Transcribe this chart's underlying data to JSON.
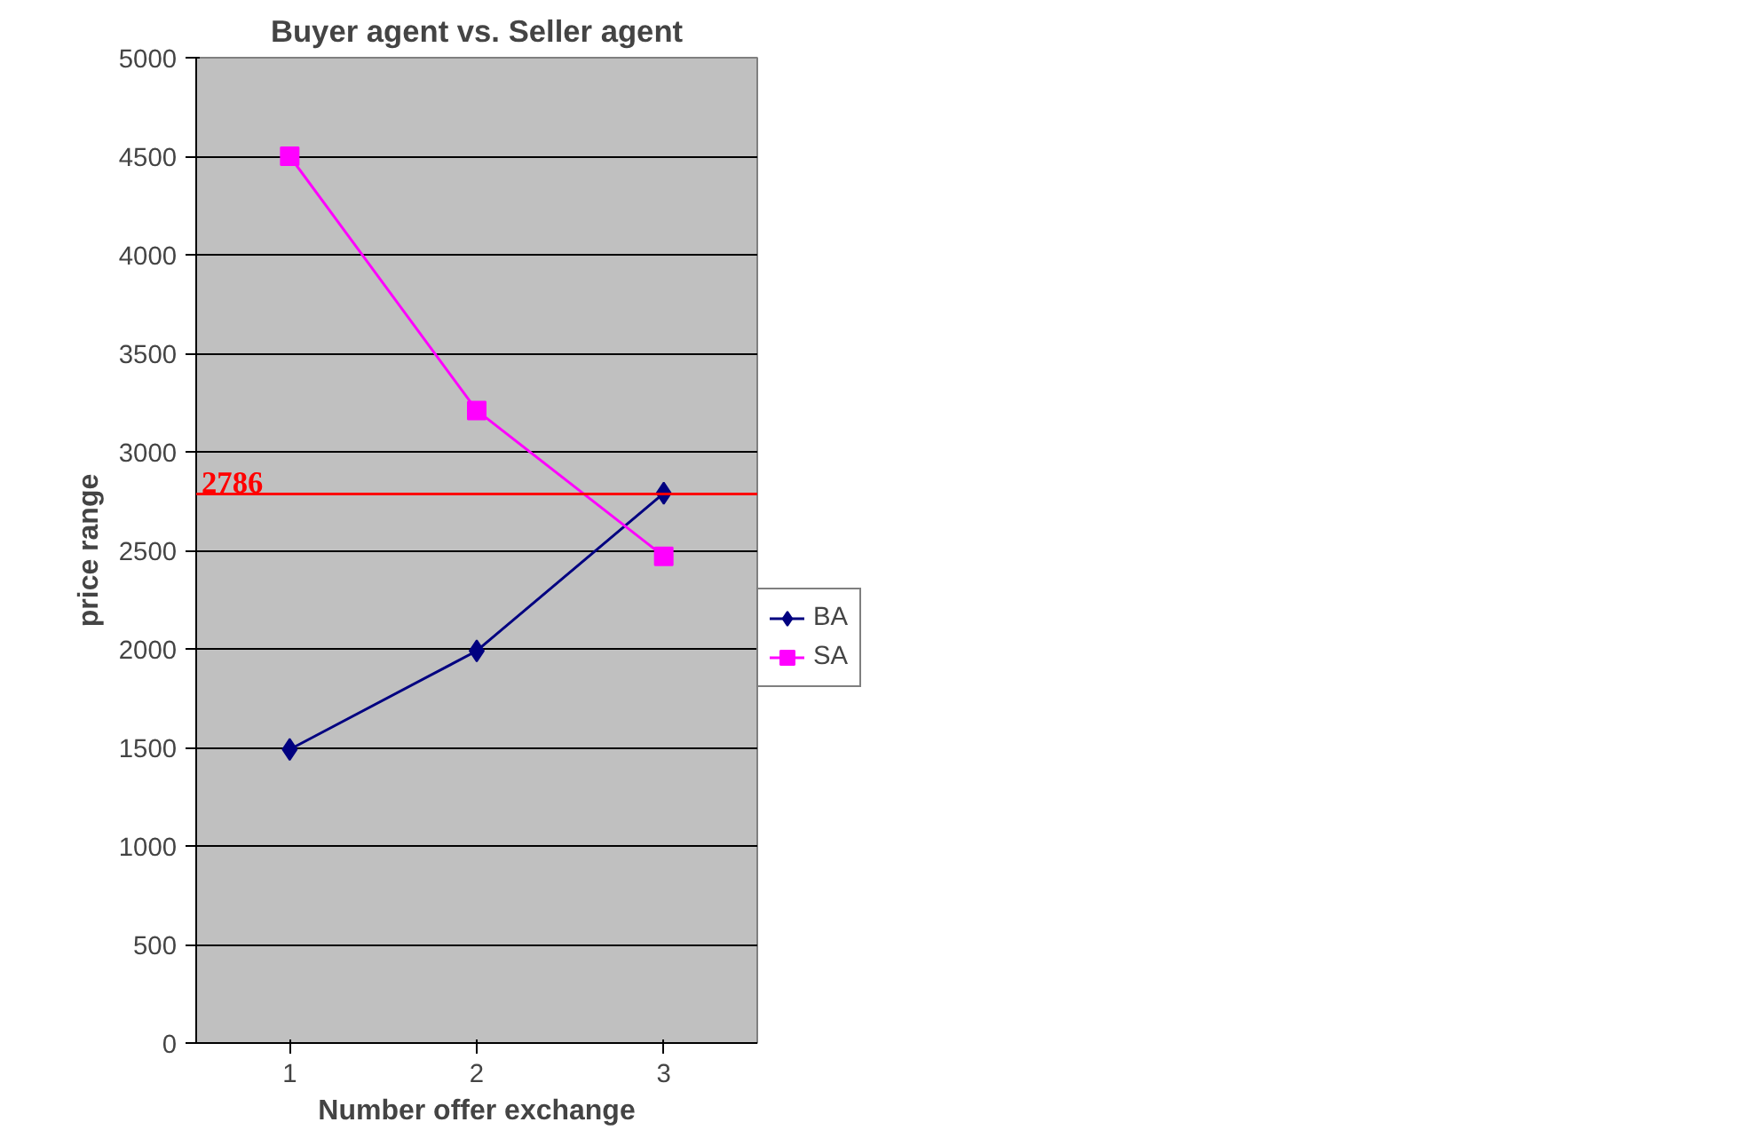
{
  "chart_data": {
    "type": "line",
    "title": "Buyer agent vs. Seller agent",
    "xlabel": "Number offer exchange",
    "ylabel": "price range",
    "categories": [
      "1",
      "2",
      "3"
    ],
    "series": [
      {
        "name": "BA",
        "color": "#000080",
        "values": [
          1490,
          1990,
          2790
        ],
        "marker": "diamond"
      },
      {
        "name": "SA",
        "color": "#ff00ff",
        "values": [
          4500,
          3210,
          2470
        ],
        "marker": "square"
      }
    ],
    "ylim": [
      0,
      5000
    ],
    "yticks": [
      0,
      500,
      1000,
      1500,
      2000,
      2500,
      3000,
      3500,
      4000,
      4500,
      5000
    ],
    "ref_lines": [
      {
        "axis": "y",
        "value": 2786,
        "label": "2786",
        "color": "#ff0000"
      }
    ],
    "grid": "y",
    "legend": "right"
  }
}
